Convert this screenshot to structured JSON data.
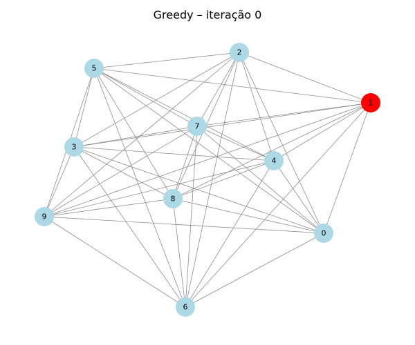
{
  "title": "Greedy – iteração 0",
  "colors": {
    "default_node": "#add8e6",
    "highlight_node": "#ff0000",
    "edge": "#8c8c8c"
  },
  "graph": {
    "nodes": [
      {
        "id": "0",
        "color": "#add8e6"
      },
      {
        "id": "1",
        "color": "#ff0000"
      },
      {
        "id": "2",
        "color": "#add8e6"
      },
      {
        "id": "3",
        "color": "#add8e6"
      },
      {
        "id": "4",
        "color": "#add8e6"
      },
      {
        "id": "5",
        "color": "#add8e6"
      },
      {
        "id": "6",
        "color": "#add8e6"
      },
      {
        "id": "7",
        "color": "#add8e6"
      },
      {
        "id": "8",
        "color": "#add8e6"
      },
      {
        "id": "9",
        "color": "#add8e6"
      }
    ],
    "edges": [
      [
        "5",
        "2"
      ],
      [
        "5",
        "1"
      ],
      [
        "5",
        "3"
      ],
      [
        "5",
        "9"
      ],
      [
        "5",
        "7"
      ],
      [
        "5",
        "4"
      ],
      [
        "5",
        "8"
      ],
      [
        "5",
        "6"
      ],
      [
        "5",
        "0"
      ],
      [
        "2",
        "3"
      ],
      [
        "2",
        "9"
      ],
      [
        "2",
        "7"
      ],
      [
        "2",
        "8"
      ],
      [
        "2",
        "6"
      ],
      [
        "2",
        "4"
      ],
      [
        "2",
        "0"
      ],
      [
        "2",
        "1"
      ],
      [
        "1",
        "7"
      ],
      [
        "1",
        "3"
      ],
      [
        "1",
        "9"
      ],
      [
        "1",
        "8"
      ],
      [
        "1",
        "4"
      ],
      [
        "1",
        "6"
      ],
      [
        "1",
        "0"
      ],
      [
        "7",
        "3"
      ],
      [
        "7",
        "9"
      ],
      [
        "7",
        "8"
      ],
      [
        "7",
        "6"
      ],
      [
        "7",
        "4"
      ],
      [
        "7",
        "0"
      ],
      [
        "3",
        "4"
      ],
      [
        "3",
        "8"
      ],
      [
        "3",
        "0"
      ],
      [
        "3",
        "6"
      ],
      [
        "3",
        "9"
      ],
      [
        "4",
        "9"
      ],
      [
        "4",
        "8"
      ],
      [
        "4",
        "6"
      ],
      [
        "4",
        "0"
      ],
      [
        "9",
        "8"
      ],
      [
        "9",
        "0"
      ],
      [
        "9",
        "6"
      ],
      [
        "8",
        "6"
      ],
      [
        "8",
        "0"
      ],
      [
        "6",
        "0"
      ]
    ]
  }
}
